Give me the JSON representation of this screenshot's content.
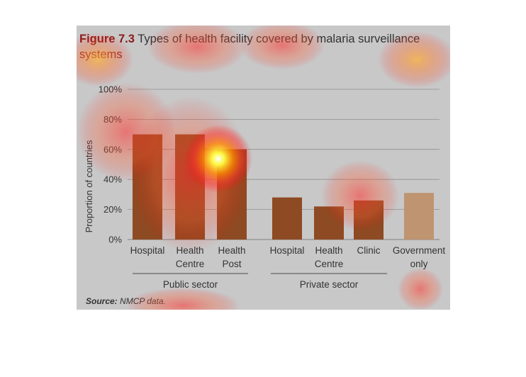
{
  "figure": {
    "label": "Figure 7.3",
    "title": "Types of health facility covered by malaria surveillance",
    "title_line2": "systems",
    "source_label": "Source:",
    "source_text": "NMCP data."
  },
  "colors": {
    "panel": "#c8c8c8",
    "bar_dark": "#8e4a22",
    "bar_light": "#bf9470",
    "title_accent": "#8b1a1a",
    "text": "#333333",
    "gridline": "#8f8f8f"
  },
  "chart_data": {
    "type": "bar",
    "ylabel": "Proportion of countries",
    "ylim": [
      0,
      100
    ],
    "yticks": [
      0,
      20,
      40,
      60,
      80,
      100
    ],
    "ytick_labels": [
      "0%",
      "20%",
      "40%",
      "60%",
      "80%",
      "100%"
    ],
    "grid": true,
    "legend": "none",
    "categories": [
      {
        "label": [
          "Hospital"
        ],
        "group": "public",
        "value": 70
      },
      {
        "label": [
          "Health",
          "Centre"
        ],
        "group": "public",
        "value": 70
      },
      {
        "label": [
          "Health",
          "Post"
        ],
        "group": "public",
        "value": 60
      },
      {
        "label": [
          "Hospital"
        ],
        "group": "private",
        "value": 28
      },
      {
        "label": [
          "Health",
          "Centre"
        ],
        "group": "private",
        "value": 22
      },
      {
        "label": [
          "Clinic"
        ],
        "group": "private",
        "value": 26
      },
      {
        "label": [
          "Government",
          "only"
        ],
        "group": "government",
        "value": 31
      }
    ],
    "groups": [
      {
        "id": "public",
        "label": "Public sector"
      },
      {
        "id": "private",
        "label": "Private sector"
      }
    ]
  }
}
